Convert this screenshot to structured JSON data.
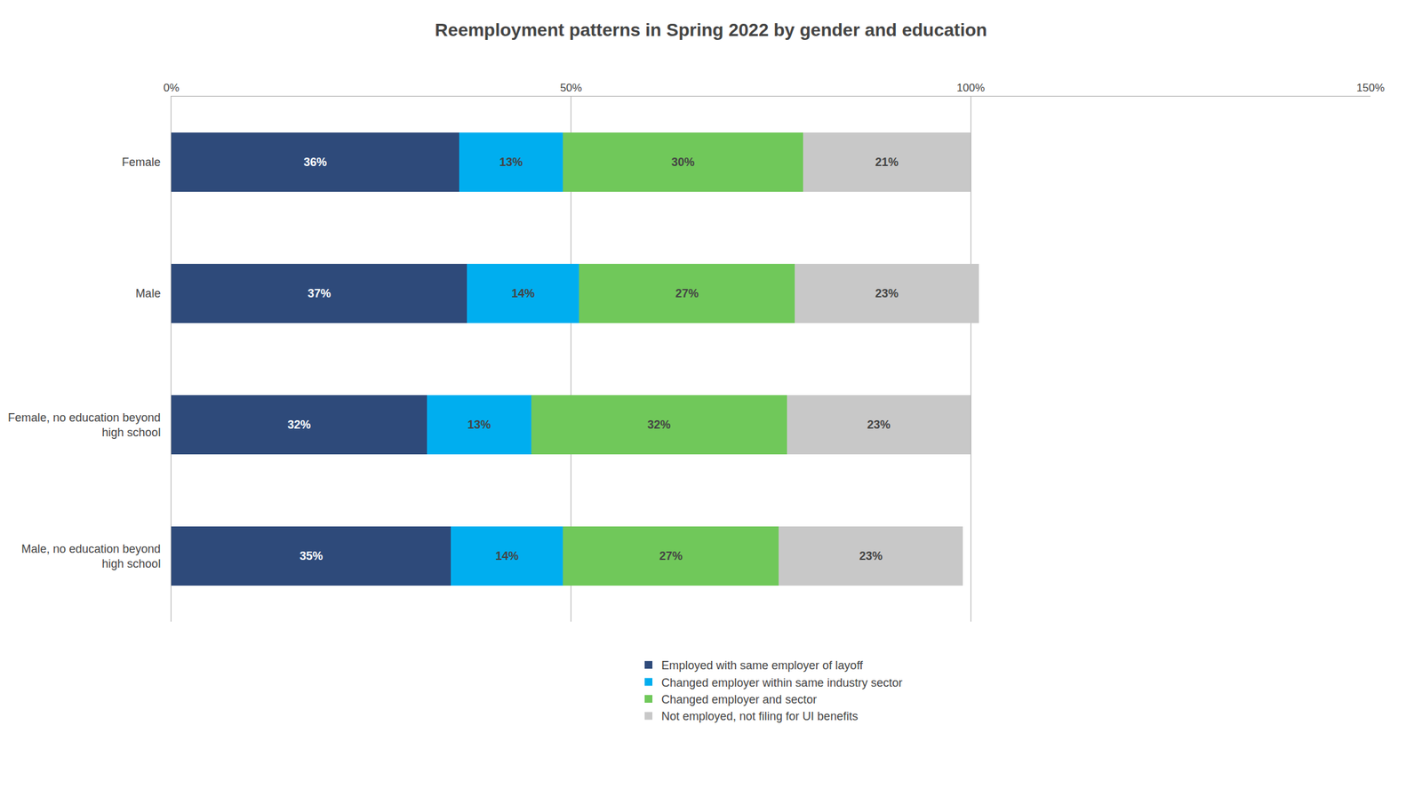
{
  "chart_data": {
    "type": "bar",
    "orientation": "horizontal",
    "stacked": true,
    "data_labels": true,
    "grid": true,
    "legend": "bottom",
    "title": "Reemployment patterns in Spring 2022 by gender and education",
    "categories": [
      "Female",
      "Male",
      "Female, no education beyond\nhigh school",
      "Male, no education beyond\nhigh school"
    ],
    "series": [
      {
        "name": "Employed with same employer of layoff",
        "color": "#2E4A7A",
        "values": [
          36,
          37,
          32,
          35
        ],
        "value_labels": [
          "36%",
          "37%",
          "32%",
          "35%"
        ]
      },
      {
        "name": "Changed employer within same industry sector",
        "color": "#00AEEF",
        "values": [
          13,
          14,
          13,
          14
        ],
        "value_labels": [
          "13%",
          "14%",
          "13%",
          "14%"
        ]
      },
      {
        "name": "Changed employer and sector",
        "color": "#70C85A",
        "values": [
          30,
          27,
          32,
          27
        ],
        "value_labels": [
          "30%",
          "27%",
          "32%",
          "27%"
        ]
      },
      {
        "name": "Not employed, not filing for UI benefits",
        "color": "#C8C8C8",
        "values": [
          21,
          23,
          23,
          23
        ],
        "value_labels": [
          "21%",
          "23%",
          "23%",
          "23%"
        ]
      }
    ],
    "xlim": [
      0,
      150
    ],
    "xticks": [
      {
        "value": 0,
        "label": "0%"
      },
      {
        "value": 50,
        "label": "50%"
      },
      {
        "value": 100,
        "label": "100%"
      },
      {
        "value": 150,
        "label": "150%"
      }
    ]
  }
}
